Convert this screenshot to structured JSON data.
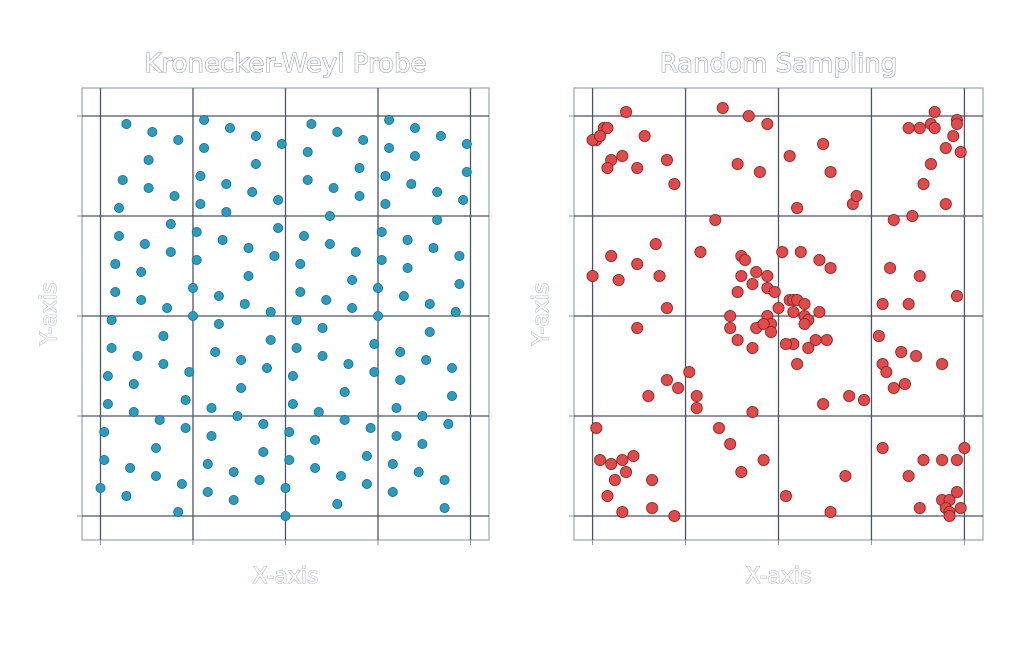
{
  "chart_data": [
    {
      "type": "scatter",
      "title": "Kronecker-Weyl Probe",
      "x_label": "X-axis",
      "y_label": "Y-axis",
      "color": "#2a9cc0",
      "edge_color": "#1b6a84",
      "grid": true,
      "xlim": [
        -0.05,
        1.05
      ],
      "ylim": [
        -0.06,
        1.07
      ],
      "xticks": [
        0,
        0.25,
        0.5,
        0.75,
        1
      ],
      "yticks": [
        0,
        0.25,
        0.5,
        0.75,
        1
      ],
      "x": [
        0.75,
        0.51,
        0.26,
        0.02,
        0.77,
        0.53,
        0.28,
        0.04,
        0.79,
        0.55,
        0.3,
        0.06,
        0.81,
        0.57,
        0.32,
        0.08,
        0.83,
        0.59,
        0.34,
        0.1,
        0.85,
        0.61,
        0.36,
        0.12,
        0.87,
        0.63,
        0.38,
        0.14,
        0.89,
        0.65,
        0.4,
        0.16,
        0.91,
        0.67,
        0.42,
        0.18,
        0.93,
        0.69,
        0.44,
        0.2,
        0.95,
        0.71,
        0.46,
        0.22,
        0.97,
        0.73,
        0.48,
        0.24,
        0.99,
        0.75,
        0.5,
        0.26,
        0.01,
        0.77,
        0.52,
        0.28,
        0.03,
        0.79,
        0.54,
        0.3,
        0.05,
        0.81,
        0.56,
        0.32,
        0.07,
        0.83,
        0.58,
        0.34,
        0.09,
        0.85,
        0.6,
        0.36,
        0.11,
        0.87,
        0.62,
        0.38,
        0.13,
        0.89,
        0.64,
        0.4,
        0.15,
        0.91,
        0.66,
        0.42,
        0.17,
        0.93,
        0.68,
        0.44,
        0.19,
        0.95,
        0.7,
        0.46,
        0.21,
        0.97,
        0.72,
        0.48,
        0.23,
        0.99,
        0.74,
        0.5,
        0.25,
        0.01,
        0.76,
        0.52,
        0.27,
        0.03,
        0.78,
        0.54,
        0.29,
        0.05,
        0.8,
        0.56,
        0.31,
        0.07,
        0.82,
        0.58,
        0.33,
        0.09,
        0.84,
        0.6,
        0.35,
        0.11,
        0.86,
        0.62,
        0.37,
        0.13,
        0.88,
        0.64,
        0.39,
        0.15,
        0.9,
        0.66,
        0.41,
        0.17,
        0.92,
        0.68,
        0.43,
        0.19,
        0.94,
        0.7,
        0.45,
        0.21,
        0.96,
        0.72,
        0.47,
        0.23,
        0.98,
        0.74,
        0.49,
        0.25,
        0.0,
        0.76,
        0.51,
        0.27,
        0.02,
        0.78,
        0.53,
        0.29,
        0.04,
        0.8
      ],
      "values": [
        0.57,
        0.14,
        0.71,
        0.28,
        0.85,
        0.42,
        0.99,
        0.56,
        0.13,
        0.7,
        0.27,
        0.84,
        0.41,
        0.98,
        0.55,
        0.12,
        0.69,
        0.26,
        0.83,
        0.4,
        0.97,
        0.54,
        0.11,
        0.68,
        0.25,
        0.82,
        0.39,
        0.96,
        0.53,
        0.1,
        0.67,
        0.24,
        0.81,
        0.38,
        0.95,
        0.52,
        0.09,
        0.66,
        0.23,
        0.8,
        0.37,
        0.94,
        0.51,
        0.08,
        0.65,
        0.22,
        0.79,
        0.36,
        0.93,
        0.5,
        0.07,
        0.64,
        0.21,
        0.78,
        0.35,
        0.92,
        0.49,
        0.06,
        0.63,
        0.2,
        0.77,
        0.34,
        0.91,
        0.48,
        0.05,
        0.62,
        0.19,
        0.76,
        0.33,
        0.9,
        0.47,
        0.04,
        0.61,
        0.18,
        0.75,
        0.32,
        0.89,
        0.46,
        0.03,
        0.6,
        0.17,
        0.74,
        0.31,
        0.88,
        0.45,
        0.02,
        0.59,
        0.16,
        0.73,
        0.3,
        0.87,
        0.44,
        0.01,
        0.58,
        0.15,
        0.72,
        0.29,
        0.86,
        0.43,
        0.0,
        0.57,
        0.14,
        0.71,
        0.28,
        0.85,
        0.42,
        0.99,
        0.56,
        0.13,
        0.7,
        0.27,
        0.84,
        0.41,
        0.98,
        0.55,
        0.12,
        0.69,
        0.26,
        0.83,
        0.4,
        0.97,
        0.54,
        0.11,
        0.68,
        0.25,
        0.82,
        0.39,
        0.96,
        0.53,
        0.1,
        0.67,
        0.24,
        0.81,
        0.38,
        0.95,
        0.52,
        0.09,
        0.66,
        0.23,
        0.8,
        0.37,
        0.94,
        0.51,
        0.08,
        0.65,
        0.22,
        0.79,
        0.36,
        0.93,
        0.5,
        0.07,
        0.64,
        0.21,
        0.78,
        0.35,
        0.92,
        0.49,
        0.06,
        0.63,
        0.2
      ]
    },
    {
      "type": "scatter",
      "title": "Random Sampling",
      "x_label": "X-axis",
      "y_label": "Y-axis",
      "color": "#e04a4a",
      "edge_color": "#8a2222",
      "grid": true,
      "xlim": [
        -0.05,
        1.05
      ],
      "ylim": [
        -0.06,
        1.07
      ],
      "xticks": [
        0,
        0.25,
        0.5,
        0.75,
        1
      ],
      "yticks": [
        0,
        0.25,
        0.5,
        0.75,
        1
      ],
      "x": [
        0.09,
        0.03,
        0.04,
        0.01,
        0.0,
        0.02,
        0.05,
        0.08,
        0.14,
        0.04,
        0.12,
        0.2,
        0.22,
        0.35,
        0.42,
        0.47,
        0.39,
        0.45,
        0.53,
        0.62,
        0.64,
        0.55,
        0.33,
        0.7,
        0.71,
        0.92,
        0.85,
        0.88,
        0.91,
        0.92,
        0.98,
        0.98,
        0.97,
        0.99,
        0.95,
        0.91,
        0.89,
        0.95,
        0.86,
        0.81,
        0.05,
        0.0,
        0.07,
        0.12,
        0.17,
        0.18,
        0.2,
        0.12,
        0.29,
        0.4,
        0.41,
        0.4,
        0.44,
        0.47,
        0.47,
        0.51,
        0.56,
        0.61,
        0.64,
        0.39,
        0.43,
        0.49,
        0.53,
        0.54,
        0.55,
        0.57,
        0.57,
        0.58,
        0.57,
        0.54,
        0.5,
        0.47,
        0.48,
        0.44,
        0.46,
        0.37,
        0.37,
        0.39,
        0.43,
        0.48,
        0.54,
        0.52,
        0.58,
        0.6,
        0.63,
        0.55,
        0.61,
        0.8,
        0.88,
        0.78,
        0.85,
        0.98,
        0.77,
        0.83,
        0.87,
        0.94,
        0.78,
        0.79,
        0.84,
        0.81,
        0.2,
        0.26,
        0.23,
        0.28,
        0.28,
        0.15,
        0.43,
        0.62,
        0.69,
        0.73,
        0.01,
        0.02,
        0.05,
        0.08,
        0.09,
        0.06,
        0.04,
        0.11,
        0.16,
        0.08,
        0.16,
        0.22,
        0.34,
        0.37,
        0.4,
        0.46,
        0.52,
        0.64,
        0.68,
        0.78,
        0.89,
        0.94,
        0.98,
        1.0,
        0.85,
        0.98,
        0.94,
        0.96,
        0.88,
        0.95,
        0.96,
        0.96,
        0.99
      ],
      "values": [
        1.01,
        0.97,
        0.97,
        0.94,
        0.94,
        0.95,
        0.89,
        0.9,
        0.95,
        0.87,
        0.87,
        0.89,
        0.83,
        1.02,
        1.0,
        0.98,
        0.88,
        0.86,
        0.9,
        0.93,
        0.86,
        0.77,
        0.74,
        0.78,
        0.8,
        1.01,
        0.97,
        0.97,
        0.98,
        0.97,
        0.99,
        0.98,
        0.95,
        0.91,
        0.92,
        0.88,
        0.83,
        0.78,
        0.75,
        0.74,
        0.65,
        0.6,
        0.59,
        0.63,
        0.68,
        0.6,
        0.52,
        0.47,
        0.66,
        0.65,
        0.64,
        0.6,
        0.61,
        0.6,
        0.57,
        0.66,
        0.66,
        0.64,
        0.62,
        0.56,
        0.58,
        0.56,
        0.54,
        0.54,
        0.54,
        0.53,
        0.5,
        0.49,
        0.48,
        0.51,
        0.52,
        0.5,
        0.48,
        0.47,
        0.48,
        0.5,
        0.47,
        0.44,
        0.42,
        0.46,
        0.43,
        0.43,
        0.42,
        0.44,
        0.44,
        0.38,
        0.51,
        0.62,
        0.6,
        0.53,
        0.53,
        0.55,
        0.45,
        0.41,
        0.4,
        0.38,
        0.38,
        0.36,
        0.33,
        0.32,
        0.34,
        0.36,
        0.32,
        0.3,
        0.27,
        0.3,
        0.26,
        0.28,
        0.3,
        0.29,
        0.22,
        0.14,
        0.13,
        0.14,
        0.11,
        0.09,
        0.05,
        0.15,
        0.09,
        0.01,
        0.02,
        0.0,
        0.22,
        0.18,
        0.11,
        0.14,
        0.05,
        0.01,
        0.1,
        0.17,
        0.14,
        0.14,
        0.14,
        0.17,
        0.1,
        0.06,
        0.04,
        0.04,
        0.02,
        0.02,
        0.01,
        0.0,
        0.02
      ]
    }
  ]
}
